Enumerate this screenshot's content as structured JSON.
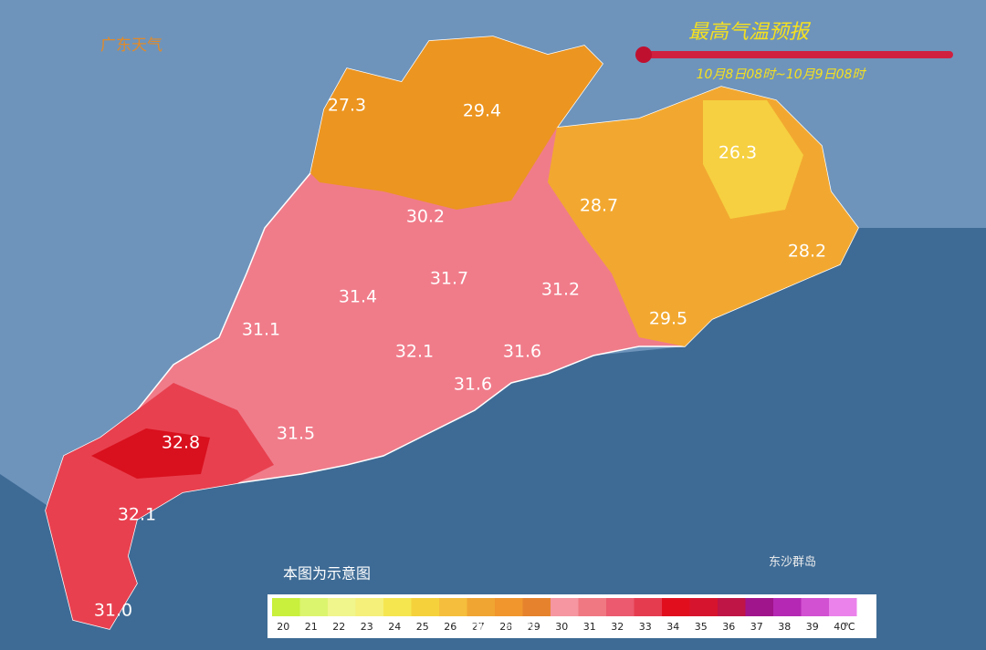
{
  "logo": "广东天气",
  "title": "最高气温预报",
  "subtitle": "10月8日08时~10月9日08时",
  "temperatures": [
    "27.3",
    "29.4",
    "26.3",
    "30.2",
    "28.7",
    "28.2",
    "31.7",
    "31.4",
    "31.2",
    "31.1",
    "29.5",
    "32.1",
    "31.6",
    "31.6",
    "32.8",
    "31.5",
    "32.1",
    "31.0"
  ],
  "note": "本图为示意图",
  "island": "东沙群岛",
  "watermark": "@广东天气",
  "legend": {
    "ticks": [
      20,
      21,
      22,
      23,
      24,
      25,
      26,
      27,
      28,
      29,
      30,
      31,
      32,
      33,
      34,
      35,
      36,
      37,
      38,
      39,
      40
    ],
    "unit": "℃",
    "colors": [
      "#c8f03c",
      "#dcf56e",
      "#f0f58c",
      "#f5f07a",
      "#f5e650",
      "#f5d23c",
      "#f5be3c",
      "#f0a532",
      "#f0962d",
      "#e6822d",
      "#f596a0",
      "#f07882",
      "#eb5a6e",
      "#e63c50",
      "#e10f1e",
      "#d7142d",
      "#be1446",
      "#a0148c",
      "#b428b4",
      "#d250d2",
      "#eb82eb"
    ]
  }
}
